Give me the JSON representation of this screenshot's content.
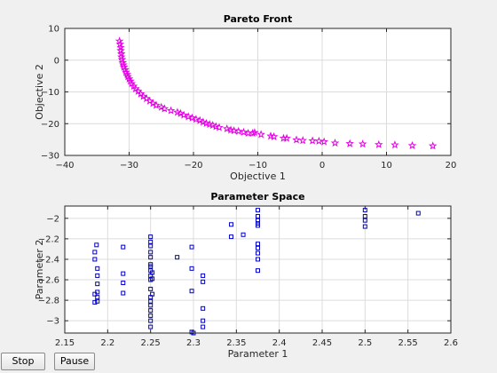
{
  "buttons": {
    "stop_label": "Stop",
    "pause_label": "Pause"
  },
  "colors": {
    "pareto_marker": "#e600e6",
    "param_marker": "#0000c8",
    "axes_bg": "#ffffff",
    "figure_bg": "#f0f0f0"
  },
  "chart_data": [
    {
      "type": "scatter",
      "title": "Pareto Front",
      "xlabel": "Objective 1",
      "ylabel": "Objective 2",
      "xlim": [
        -40,
        20
      ],
      "ylim": [
        -30,
        10
      ],
      "xticks": [
        -40,
        -30,
        -20,
        -10,
        0,
        10,
        20
      ],
      "yticks": [
        -30,
        -20,
        -10,
        0,
        10
      ],
      "grid": true,
      "marker": "star",
      "series": [
        {
          "x": [
            -31.5,
            -31.4,
            -31.3,
            -31.3,
            -31.2,
            -31.2,
            -31.1,
            -31.0,
            -30.9,
            -30.8,
            -30.6,
            -30.5,
            -30.3,
            -30.2,
            -30.0,
            -29.8,
            -29.6,
            -29.3,
            -29.0,
            -28.6,
            -28.2,
            -27.8,
            -27.3,
            -26.8,
            -26.3,
            -25.8,
            -25.0,
            -24.5,
            -23.5,
            -22.5,
            -22.0,
            -21.5,
            -20.8,
            -20.2,
            -19.6,
            -19.0,
            -18.5,
            -18.0,
            -17.5,
            -17.0,
            -16.5,
            -16.0,
            -14.8,
            -14.2,
            -13.7,
            -13.0,
            -12.2,
            -11.5,
            -10.8,
            -10.5,
            -9.5,
            -8.0,
            -7.5,
            -6.0,
            -5.5,
            -4.0,
            -3.0,
            -1.5,
            -0.5,
            0.3,
            2.0,
            4.3,
            6.3,
            8.8,
            11.3,
            14.0,
            17.2
          ],
          "y": [
            6.0,
            5.0,
            4.0,
            3.0,
            2.0,
            1.0,
            0.2,
            -0.8,
            -1.5,
            -2.2,
            -3.0,
            -3.8,
            -4.5,
            -5.2,
            -5.9,
            -6.6,
            -7.4,
            -8.2,
            -9.0,
            -9.8,
            -10.6,
            -11.4,
            -12.1,
            -12.9,
            -13.6,
            -14.2,
            -14.8,
            -15.3,
            -15.9,
            -16.4,
            -16.8,
            -17.3,
            -17.8,
            -18.2,
            -18.6,
            -19.0,
            -19.5,
            -19.9,
            -20.2,
            -20.5,
            -20.9,
            -21.2,
            -21.6,
            -22.0,
            -22.2,
            -22.4,
            -22.7,
            -23.0,
            -23.0,
            -22.8,
            -23.4,
            -23.9,
            -24.1,
            -24.6,
            -24.6,
            -25.1,
            -25.3,
            -25.4,
            -25.5,
            -25.7,
            -26.1,
            -26.3,
            -26.4,
            -26.6,
            -26.7,
            -26.9,
            -27.0
          ]
        }
      ]
    },
    {
      "type": "scatter",
      "title": "Parameter Space",
      "xlabel": "Parameter 1",
      "ylabel": "Parameter 2",
      "xlim": [
        2.15,
        2.6
      ],
      "ylim": [
        -3.12,
        -1.88
      ],
      "xticks": [
        2.15,
        2.2,
        2.25,
        2.3,
        2.35,
        2.4,
        2.45,
        2.5,
        2.55,
        2.6
      ],
      "yticks": [
        -3,
        -2.8,
        -2.6,
        -2.4,
        -2.2,
        -2
      ],
      "grid": true,
      "marker": "square",
      "series": [
        {
          "x": [
            2.185,
            2.185,
            2.185,
            2.185,
            2.187,
            2.188,
            2.188,
            2.188,
            2.188,
            2.188,
            2.188,
            2.218,
            2.218,
            2.218,
            2.218,
            2.25,
            2.25,
            2.25,
            2.25,
            2.25,
            2.25,
            2.25,
            2.25,
            2.25,
            2.25,
            2.25,
            2.25,
            2.25,
            2.25,
            2.25,
            2.25,
            2.25,
            2.25,
            2.252,
            2.252,
            2.252,
            2.281,
            2.298,
            2.298,
            2.298,
            2.298,
            2.3,
            2.311,
            2.311,
            2.311,
            2.311,
            2.311,
            2.344,
            2.344,
            2.358,
            2.375,
            2.375,
            2.375,
            2.375,
            2.375,
            2.375,
            2.375,
            2.375,
            2.375,
            2.375,
            2.5,
            2.5,
            2.5,
            2.5,
            2.562
          ],
          "y": [
            -2.82,
            -2.74,
            -2.4,
            -2.33,
            -2.26,
            -2.49,
            -2.56,
            -2.64,
            -2.72,
            -2.77,
            -2.81,
            -2.28,
            -2.54,
            -2.63,
            -2.73,
            -2.23,
            -2.38,
            -2.45,
            -2.51,
            -2.56,
            -2.6,
            -2.69,
            -2.77,
            -2.81,
            -2.85,
            -2.9,
            -2.95,
            -3.0,
            -3.06,
            -2.18,
            -2.27,
            -2.33,
            -2.47,
            -2.53,
            -2.59,
            -2.74,
            -2.38,
            -2.28,
            -2.49,
            -2.71,
            -3.11,
            -3.12,
            -2.56,
            -2.62,
            -2.88,
            -3.0,
            -3.06,
            -2.06,
            -2.18,
            -2.16,
            -1.92,
            -1.98,
            -2.02,
            -2.05,
            -2.07,
            -2.25,
            -2.29,
            -2.34,
            -2.4,
            -2.51,
            -1.92,
            -1.98,
            -2.02,
            -2.08,
            -1.95
          ]
        }
      ]
    }
  ]
}
